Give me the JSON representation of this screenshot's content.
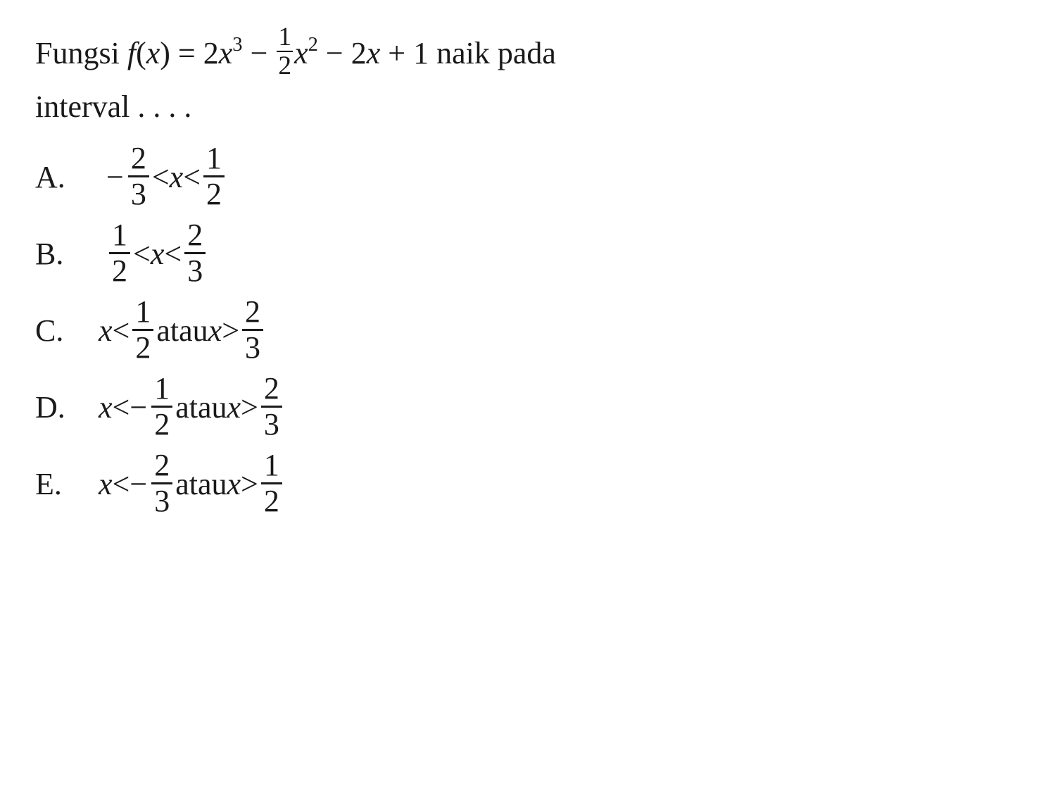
{
  "colors": {
    "text": "#1a1a1a",
    "background": "#ffffff",
    "rule": "#1a1a1a"
  },
  "typography": {
    "family": "Times New Roman",
    "base_size_pt": 44,
    "fraction_scale": 0.85
  },
  "stem": {
    "prefix": "Fungsi ",
    "func_name": "f",
    "func_arg_open": "(",
    "func_var": "x",
    "func_arg_close": ")",
    "equals": " = ",
    "term1_coef": "2",
    "term1_var": "x",
    "term1_pow": "3",
    "minus1": " − ",
    "term2_frac_num": "1",
    "term2_frac_den": "2",
    "term2_var": "x",
    "term2_pow": "2",
    "minus2": " − ",
    "term3_coef": "2",
    "term3_var": "x",
    "plus": " + ",
    "term4": "1",
    "suffix1": " naik pada",
    "line2": "interval . . . ."
  },
  "atau": " atau ",
  "lt": " < ",
  "gt": " > ",
  "x": "x",
  "neg": "−",
  "options": {
    "A": {
      "letter": "A.",
      "left_neg": "−",
      "left_num": "2",
      "left_den": "3",
      "right_num": "1",
      "right_den": "2"
    },
    "B": {
      "letter": "B.",
      "left_num": "1",
      "left_den": "2",
      "right_num": "2",
      "right_den": "3"
    },
    "C": {
      "letter": "C.",
      "first_num": "1",
      "first_den": "2",
      "second_num": "2",
      "second_den": "3"
    },
    "D": {
      "letter": "D.",
      "first_neg": "−",
      "first_num": "1",
      "first_den": "2",
      "second_num": "2",
      "second_den": "3"
    },
    "E": {
      "letter": "E.",
      "first_neg": "−",
      "first_num": "2",
      "first_den": "3",
      "second_num": "1",
      "second_den": "2"
    }
  }
}
